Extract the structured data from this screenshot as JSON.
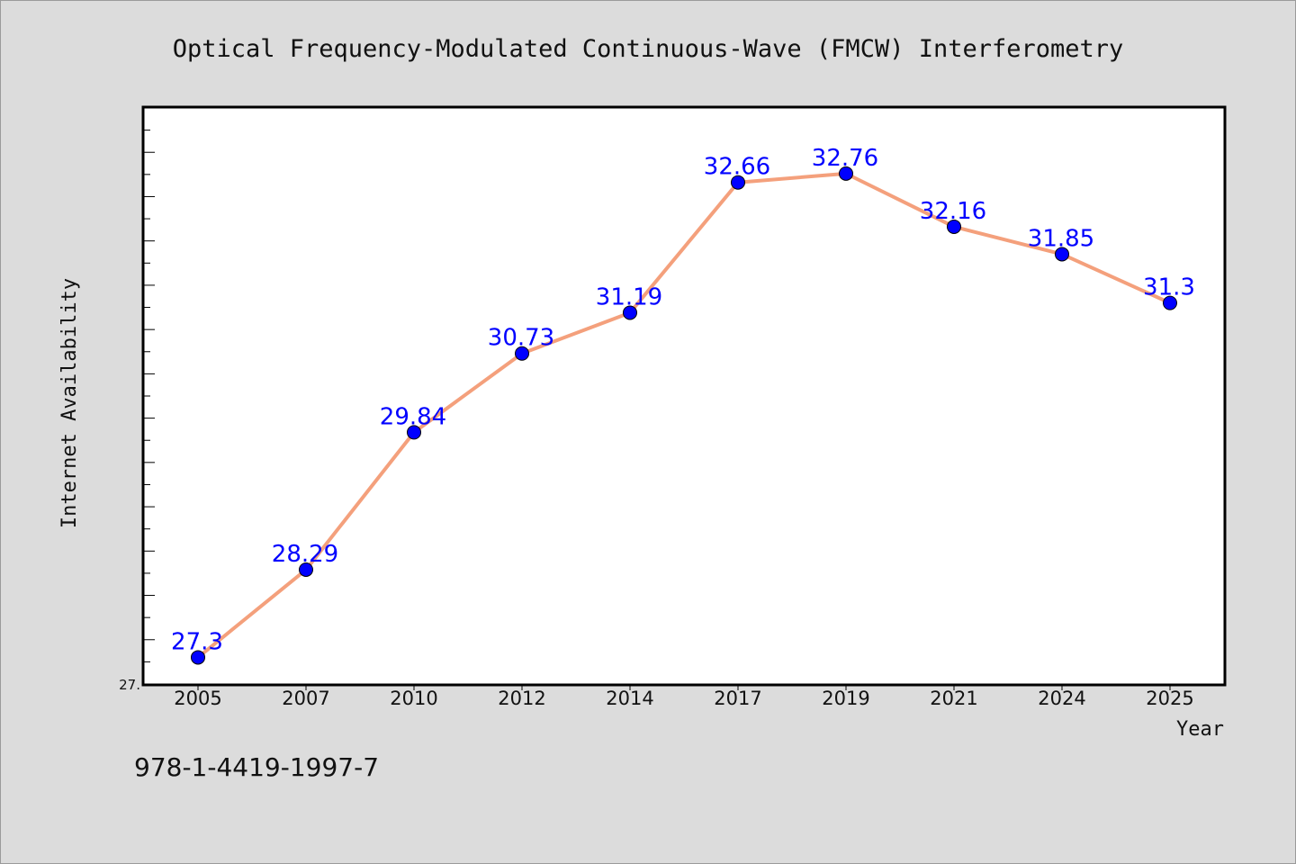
{
  "chart_data": {
    "type": "line",
    "title": "Optical Frequency-Modulated Continuous-Wave (FMCW) Interferometry",
    "xlabel": "Year",
    "ylabel": "Internet Availability",
    "categories": [
      "2005",
      "2007",
      "2010",
      "2012",
      "2014",
      "2017",
      "2019",
      "2021",
      "2024",
      "2025"
    ],
    "series": [
      {
        "values": [
          27.3,
          28.29,
          29.84,
          30.73,
          31.19,
          32.66,
          32.76,
          32.16,
          31.85,
          31.3
        ],
        "labels": [
          "27.3",
          "28.29",
          "29.84",
          "30.73",
          "31.19",
          "32.66",
          "32.76",
          "32.16",
          "31.85",
          "31.3"
        ],
        "line_color": "#f4a07c",
        "marker_color": "#0000ff"
      }
    ],
    "ylim": [
      27.0,
      33.5
    ],
    "ytick_labels": [
      {
        "value": 27.0,
        "label": "27."
      }
    ],
    "grid": false,
    "legend": "none"
  },
  "footer": {
    "note": "978-1-4419-1997-7"
  }
}
